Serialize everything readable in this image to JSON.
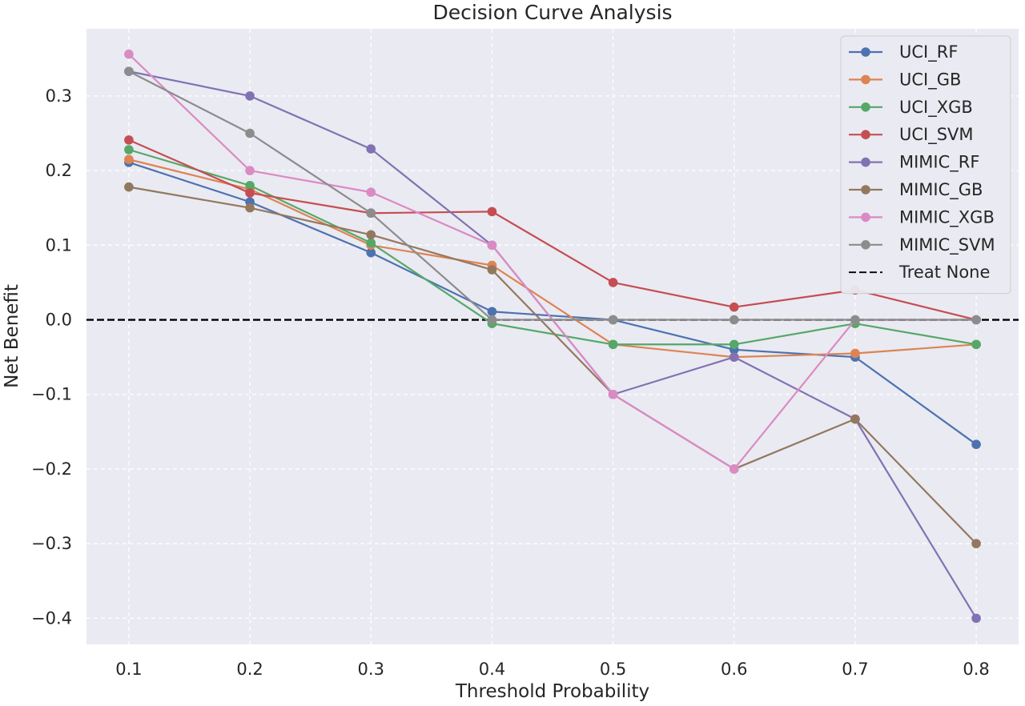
{
  "chart_data": {
    "type": "line",
    "title": "Decision Curve Analysis",
    "xlabel": "Threshold Probability",
    "ylabel": "Net Benefit",
    "x": [
      0.1,
      0.2,
      0.3,
      0.4,
      0.5,
      0.6,
      0.7,
      0.8
    ],
    "xticks": [
      "0.1",
      "0.2",
      "0.3",
      "0.4",
      "0.5",
      "0.6",
      "0.7",
      "0.8"
    ],
    "yticks": [
      {
        "v": 0.3,
        "label": "0.3"
      },
      {
        "v": 0.2,
        "label": "0.2"
      },
      {
        "v": 0.1,
        "label": "0.1"
      },
      {
        "v": 0.0,
        "label": "0.0"
      },
      {
        "v": -0.1,
        "label": "−0.1"
      },
      {
        "v": -0.2,
        "label": "−0.2"
      },
      {
        "v": -0.3,
        "label": "−0.3"
      },
      {
        "v": -0.4,
        "label": "−0.4"
      }
    ],
    "xlim": [
      0.065,
      0.835
    ],
    "ylim": [
      -0.435,
      0.39
    ],
    "grid": true,
    "legend_position": "top-right",
    "background": "#eaeaf2",
    "series": [
      {
        "name": "UCI_RF",
        "color": "#4c72b0",
        "values": [
          0.211,
          0.158,
          0.09,
          0.011,
          0.0,
          -0.04,
          -0.05,
          -0.167
        ]
      },
      {
        "name": "UCI_GB",
        "color": "#dd8452",
        "values": [
          0.215,
          0.175,
          0.1,
          0.073,
          -0.033,
          -0.05,
          -0.045,
          -0.033
        ]
      },
      {
        "name": "UCI_XGB",
        "color": "#55a868",
        "values": [
          0.228,
          0.18,
          0.103,
          -0.005,
          -0.033,
          -0.033,
          -0.005,
          -0.033
        ]
      },
      {
        "name": "UCI_SVM",
        "color": "#c44e52",
        "values": [
          0.241,
          0.17,
          0.143,
          0.145,
          0.05,
          0.017,
          0.04,
          0.0
        ]
      },
      {
        "name": "MIMIC_RF",
        "color": "#8172b3",
        "values": [
          0.333,
          0.3,
          0.229,
          0.1,
          -0.1,
          -0.05,
          -0.133,
          -0.4
        ]
      },
      {
        "name": "MIMIC_GB",
        "color": "#937860",
        "values": [
          0.178,
          0.15,
          0.114,
          0.067,
          -0.1,
          -0.2,
          -0.133,
          -0.3
        ]
      },
      {
        "name": "MIMIC_XGB",
        "color": "#da8bc3",
        "values": [
          0.356,
          0.2,
          0.171,
          0.1,
          -0.1,
          -0.2,
          0.0,
          0.0
        ]
      },
      {
        "name": "MIMIC_SVM",
        "color": "#8c8c8c",
        "values": [
          0.333,
          0.25,
          0.143,
          0.0,
          0.0,
          0.0,
          0.0,
          0.0
        ]
      }
    ],
    "reference_line": {
      "name": "Treat None",
      "value": 0.0,
      "color": "#000000",
      "style": "dashed"
    }
  }
}
